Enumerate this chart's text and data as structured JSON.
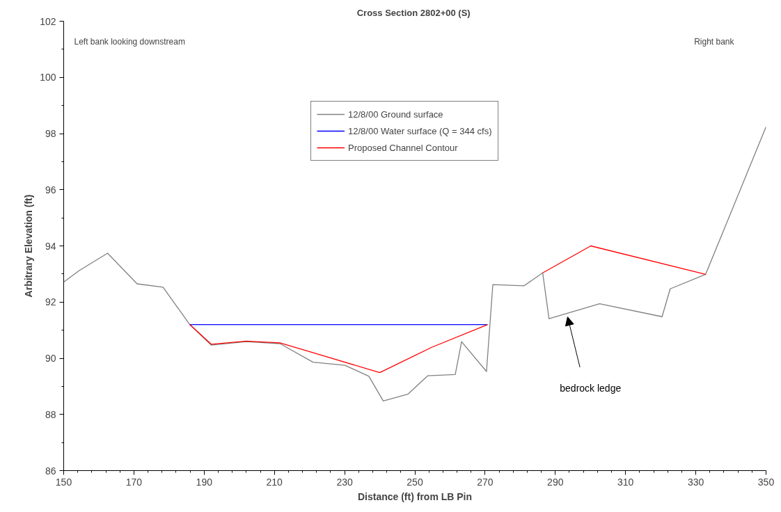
{
  "chart_data": {
    "type": "line",
    "title": "Cross Section  2802+00 (S)",
    "xlabel": "Distance (ft) from LB Pin",
    "ylabel": "Arbitrary Elevation (ft)",
    "xlim": [
      150,
      350
    ],
    "xticks": [
      150,
      170,
      190,
      210,
      230,
      250,
      270,
      290,
      310,
      330,
      350
    ],
    "ylim": [
      86,
      102
    ],
    "yticks": [
      86,
      88,
      90,
      92,
      94,
      96,
      98,
      100,
      102
    ],
    "grid": false,
    "legend": "top",
    "marker": "none",
    "line_style": "solid",
    "series": [
      {
        "name": "12/8/00 Ground surface",
        "color": "#808080",
        "x": [
          150,
          154.4,
          162.5,
          170.9,
          178.3,
          185.9,
          192.0,
          202.0,
          211.6,
          221.0,
          230.1,
          236.9,
          241.0,
          248.0,
          253.7,
          261.5,
          263.3,
          270.4,
          272.2,
          281.1,
          286.4,
          288.2,
          302.6,
          320.4,
          322.7,
          332.8,
          350
        ],
        "values": [
          92.71,
          93.12,
          93.74,
          92.65,
          92.53,
          91.2,
          90.47,
          90.59,
          90.52,
          89.86,
          89.75,
          89.36,
          88.48,
          88.72,
          89.38,
          89.42,
          90.59,
          89.53,
          92.62,
          92.58,
          93.04,
          91.41,
          91.94,
          91.48,
          92.47,
          92.99,
          98.24
        ]
      },
      {
        "name": "12/8/00 Water surface (Q = 344 cfs)",
        "color": "#0000ff",
        "x": [
          185.9,
          270.7
        ],
        "values": [
          91.2,
          91.2
        ]
      },
      {
        "name": "Proposed Channel Contour",
        "color": "#ff0000",
        "x": [
          185.9,
          192.0,
          202.0,
          211.6,
          240.0,
          254.8,
          270.7,
          278,
          286.4,
          300.1,
          332.8
        ],
        "values": [
          91.2,
          90.5,
          90.61,
          90.55,
          89.49,
          90.39,
          91.2,
          null,
          93.04,
          94.0,
          92.99
        ]
      }
    ],
    "annotations": [
      "Left bank looking downstream",
      "Right bank",
      "bedrock ledge"
    ]
  }
}
